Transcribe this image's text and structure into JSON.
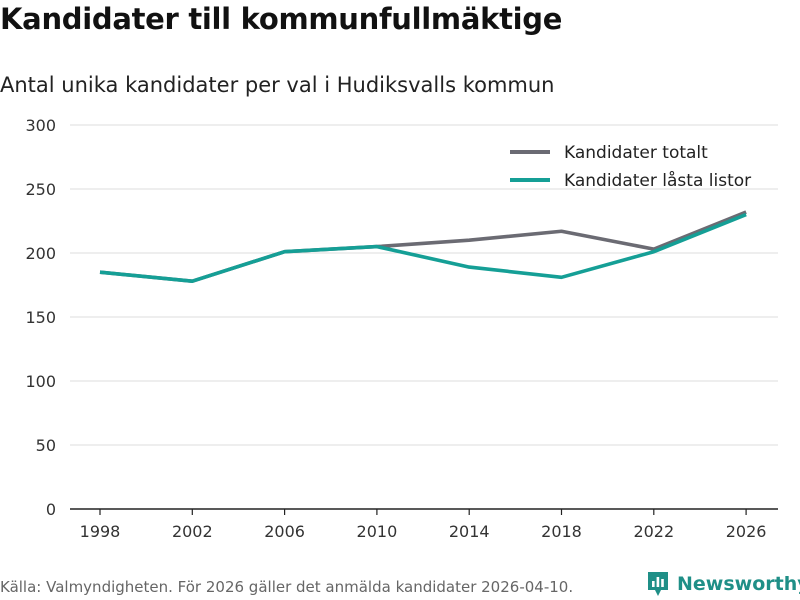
{
  "title": "Kandidater till kommunfullmäktige",
  "subtitle": "Antal unika kandidater per val i Hudiksvalls kommun",
  "source": "Källa: Valmyndigheten. För 2026 gäller det anmälda kandidater 2026-04-10.",
  "brand": {
    "name": "Newsworthy",
    "icon": "newsworthy-logo-icon",
    "color": "#1f8f87"
  },
  "chart_data": {
    "type": "line",
    "x": [
      1998,
      2002,
      2006,
      2010,
      2014,
      2018,
      2022,
      2026
    ],
    "x_tick_labels": [
      "1998",
      "2002",
      "2006",
      "2010",
      "2014",
      "2018",
      "2022",
      "2026"
    ],
    "y_ticks": [
      0,
      50,
      100,
      150,
      200,
      250,
      300
    ],
    "ylim": [
      0,
      300
    ],
    "grid": true,
    "legend_position": "top-right",
    "series": [
      {
        "name": "Kandidater totalt",
        "color": "#6b6b73",
        "values": [
          185,
          178,
          201,
          205,
          210,
          217,
          203,
          232
        ]
      },
      {
        "name": "Kandidater låsta listor",
        "color": "#159f96",
        "values": [
          185,
          178,
          201,
          205,
          189,
          181,
          201,
          230
        ]
      }
    ]
  }
}
